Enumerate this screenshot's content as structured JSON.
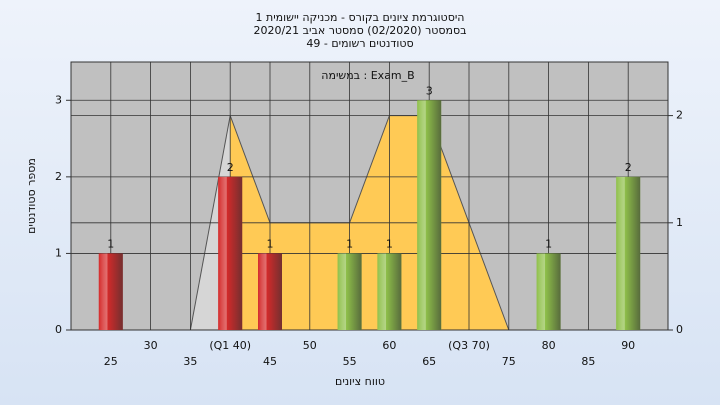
{
  "chart_data": {
    "type": "bar",
    "title": [
      "היסטוגרמת ציונים בקורס - מכניקה יישומית 1",
      "בסמסטר  (02/2020)  סמסטר אביב 2020/21",
      "סטודנטים רשומים - 49"
    ],
    "annotation": "במשימה : Exam_B",
    "xlabel": "טווח ציונים",
    "ylabel": "מספר סטודנטים",
    "x": [
      25,
      40,
      45,
      55,
      60,
      65,
      80,
      90
    ],
    "values": [
      1,
      2,
      1,
      1,
      1,
      3,
      1,
      2
    ],
    "colors": [
      "#d42a2a",
      "#d42a2a",
      "#d42a2a",
      "#8fc04a",
      "#8fc04a",
      "#8fc04a",
      "#8fc04a",
      "#8fc04a"
    ],
    "xlim": [
      20,
      95
    ],
    "xticks": [
      25,
      30,
      35,
      {
        "value": 40,
        "label": "(Q1 40)"
      },
      45,
      50,
      55,
      60,
      65,
      {
        "value": 70,
        "label": "(Q3 70)"
      },
      75,
      80,
      85,
      90
    ],
    "ylim": [
      0,
      3.5
    ],
    "yticks": [
      0,
      1,
      2,
      3
    ],
    "y2lim": [
      0,
      2.5
    ],
    "y2ticks": [
      0,
      1,
      2
    ],
    "area_series": [
      {
        "color": "#d6d6d6",
        "axis": "y2",
        "x": [
          35,
          40
        ],
        "values": [
          0,
          2
        ]
      },
      {
        "color": "#ffca55",
        "axis": "y2",
        "x": [
          40,
          45,
          55,
          60,
          65,
          75
        ],
        "values": [
          2,
          1,
          1,
          2,
          2,
          0
        ]
      }
    ],
    "grid": true
  }
}
